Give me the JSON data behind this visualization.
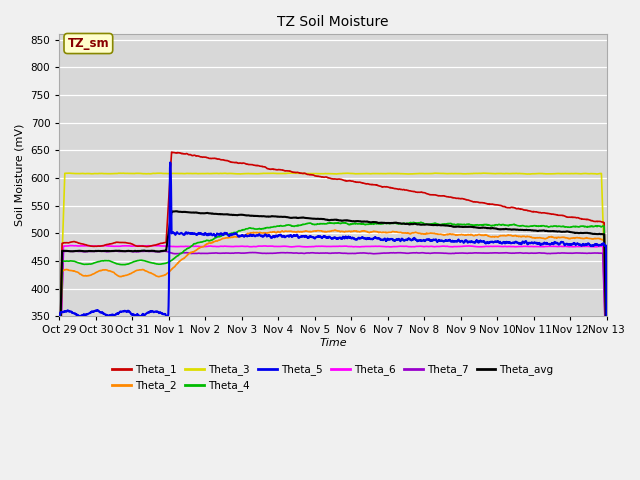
{
  "title": "TZ Soil Moisture",
  "xlabel": "Time",
  "ylabel": "Soil Moisture (mV)",
  "ylim": [
    350,
    860
  ],
  "yticks": [
    350,
    400,
    450,
    500,
    550,
    600,
    650,
    700,
    750,
    800,
    850
  ],
  "x_labels": [
    "Oct 29",
    "Oct 30",
    "Oct 31",
    "Nov 1",
    "Nov 2",
    "Nov 3",
    "Nov 4",
    "Nov 5",
    "Nov 6",
    "Nov 7",
    "Nov 8",
    "Nov 9",
    "Nov 10",
    "Nov 11",
    "Nov 12",
    "Nov 13"
  ],
  "num_points": 2000,
  "plot_bg": "#d8d8d8",
  "fig_bg": "#f0f0f0",
  "colors": {
    "Theta_1": "#cc0000",
    "Theta_2": "#ff8800",
    "Theta_3": "#dddd00",
    "Theta_4": "#00bb00",
    "Theta_5": "#0000ee",
    "Theta_6": "#ff00ff",
    "Theta_7": "#9900cc",
    "Theta_avg": "#000000"
  },
  "legend_box_color": "#ffffcc",
  "legend_box_text": "TZ_sm",
  "legend_box_text_color": "#880000",
  "legend_box_edge_color": "#888800"
}
